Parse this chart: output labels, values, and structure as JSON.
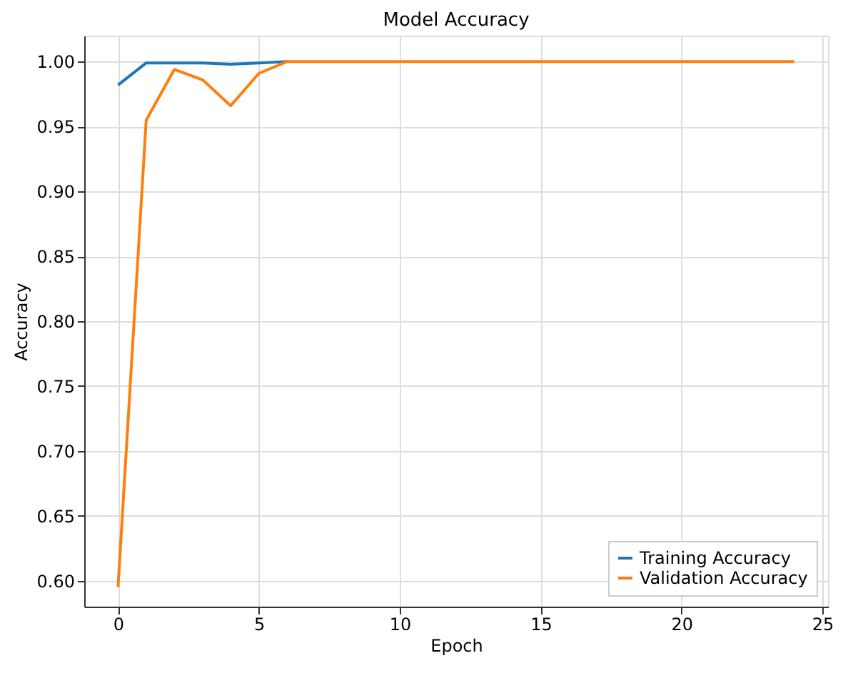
{
  "chart_data": {
    "type": "line",
    "title": "Model Accuracy",
    "xlabel": "Epoch",
    "ylabel": "Accuracy",
    "x": [
      0,
      1,
      2,
      3,
      4,
      5,
      6,
      7,
      8,
      9,
      10,
      11,
      12,
      13,
      14,
      15,
      16,
      17,
      18,
      19,
      20,
      21,
      22,
      23,
      24
    ],
    "series": [
      {
        "name": "Training Accuracy",
        "color": "#1f77b4",
        "values": [
          0.982,
          0.999,
          0.999,
          0.999,
          0.998,
          0.999,
          1.0,
          null,
          null,
          null,
          null,
          null,
          null,
          null,
          null,
          null,
          null,
          null,
          null,
          null,
          null,
          null,
          null,
          null,
          null
        ]
      },
      {
        "name": "Validation Accuracy",
        "color": "#ff7f0e",
        "values": [
          0.595,
          0.955,
          0.994,
          0.986,
          0.966,
          0.991,
          1.0,
          1.0,
          1.0,
          1.0,
          1.0,
          1.0,
          1.0,
          1.0,
          1.0,
          1.0,
          1.0,
          1.0,
          1.0,
          1.0,
          1.0,
          1.0,
          1.0,
          1.0,
          1.0
        ]
      }
    ],
    "xlim": [
      -1.2,
      25.2
    ],
    "xticks": [
      0,
      5,
      10,
      15,
      20,
      25
    ],
    "ylim": [
      0.58,
      1.02
    ],
    "yticks": [
      {
        "value": 0.6,
        "label": "0.60"
      },
      {
        "value": 0.65,
        "label": "0.65"
      },
      {
        "value": 0.7,
        "label": "0.70"
      },
      {
        "value": 0.75,
        "label": "0.75"
      },
      {
        "value": 0.8,
        "label": "0.80"
      },
      {
        "value": 0.85,
        "label": "0.85"
      },
      {
        "value": 0.9,
        "label": "0.90"
      },
      {
        "value": 0.95,
        "label": "0.95"
      },
      {
        "value": 1.0,
        "label": "1.00"
      }
    ],
    "grid": true,
    "legend": "bottom right",
    "marker": "none",
    "line_style": "solid"
  }
}
